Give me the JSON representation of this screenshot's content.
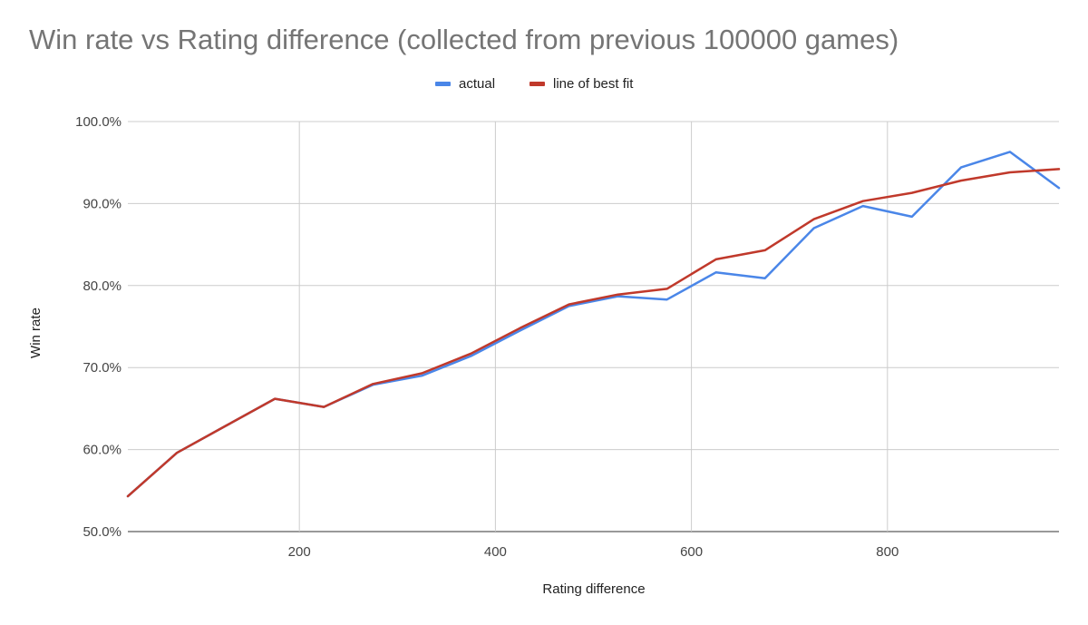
{
  "chart_data": {
    "type": "line",
    "title": "Win rate vs Rating difference (collected from previous 100000 games)",
    "xlabel": "Rating difference",
    "ylabel": "Win rate",
    "xlim": [
      25,
      975
    ],
    "ylim": [
      0.5,
      1.0
    ],
    "x_ticks": [
      200,
      400,
      600,
      800
    ],
    "y_ticks": [
      0.5,
      0.6,
      0.7,
      0.8,
      0.9,
      1.0
    ],
    "x_tick_labels": [
      "200",
      "400",
      "600",
      "800"
    ],
    "y_tick_labels": [
      "50.0%",
      "60.0%",
      "70.0%",
      "80.0%",
      "90.0%",
      "100.0%"
    ],
    "grid": true,
    "legend_position": "top",
    "x": [
      25,
      75,
      125,
      175,
      225,
      275,
      325,
      375,
      425,
      475,
      525,
      575,
      625,
      675,
      725,
      775,
      825,
      875,
      925,
      975
    ],
    "series": [
      {
        "name": "actual",
        "color": "#4a86e8",
        "values": [
          0.543,
          0.596,
          0.629,
          0.662,
          0.652,
          0.679,
          0.69,
          0.714,
          0.745,
          0.775,
          0.787,
          0.783,
          0.816,
          0.809,
          0.87,
          0.897,
          0.884,
          0.944,
          0.963,
          0.919
        ]
      },
      {
        "name": "line of best fit",
        "color": "#c0392b",
        "values": [
          0.543,
          0.596,
          0.629,
          0.662,
          0.652,
          0.68,
          0.693,
          0.717,
          0.748,
          0.777,
          0.789,
          0.796,
          0.832,
          0.843,
          0.881,
          0.903,
          0.913,
          0.928,
          0.938,
          0.942
        ]
      }
    ]
  },
  "colors": {
    "title": "#757575",
    "gridline": "#cccccc",
    "axis_baseline": "#333333"
  }
}
